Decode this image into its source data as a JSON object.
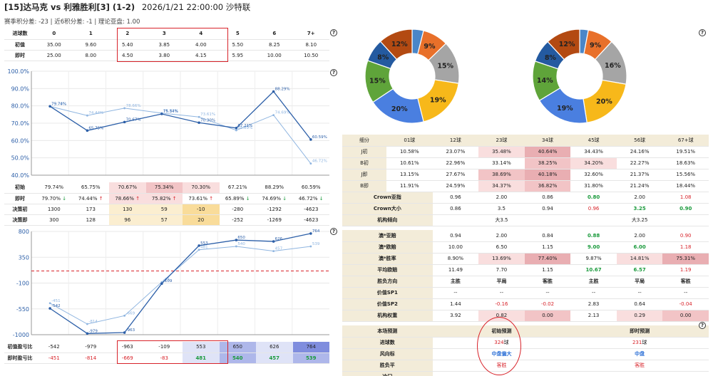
{
  "header": {
    "title_bold": "[15]达马克 vs 利雅胜利[3] (1-2)",
    "time_league": "2026/1/21 22:00:00  沙特联",
    "subtitle": "赛季积分差: -23 | 近6积分差: -1 | 理论亚盘: 1.00",
    "help": "?"
  },
  "goals_table": {
    "header_label": "进球数",
    "columns": [
      "0",
      "1",
      "2",
      "3",
      "4",
      "5",
      "6",
      "7+"
    ],
    "rows": [
      {
        "label": "初值",
        "values": [
          "35.00",
          "9.60",
          "5.40",
          "3.85",
          "4.00",
          "5.50",
          "8.25",
          "8.10"
        ]
      },
      {
        "label": "即时",
        "values": [
          "25.00",
          "8.00",
          "4.50",
          "3.80",
          "4.15",
          "5.95",
          "10.00",
          "10.50"
        ]
      }
    ]
  },
  "chart_data": [
    {
      "type": "line",
      "name": "probability-line-chart",
      "categories": [
        "0",
        "1",
        "2",
        "3",
        "4",
        "5",
        "6",
        "7+"
      ],
      "series": [
        {
          "name": "初始",
          "values": [
            79.74,
            65.75,
            70.67,
            75.34,
            70.3,
            67.21,
            88.29,
            60.59
          ],
          "color": "#2c5fa8"
        },
        {
          "name": "即时",
          "values": [
            79.7,
            74.44,
            78.66,
            75.82,
            73.61,
            65.89,
            74.69,
            46.72
          ],
          "color": "#8fb5e0"
        }
      ],
      "point_labels_a": [
        "79.74%",
        "65.75%",
        "70.67%",
        "75.34%",
        "70.30%",
        "67.21%",
        "88.29%",
        "60.59%"
      ],
      "point_labels_b": [
        "79.70%",
        "74.44%",
        "78.66%",
        "75.82%",
        "73.61%",
        "65.89%",
        "74.69%",
        "46.72%"
      ],
      "yticks": [
        "100.0%",
        "90.0%",
        "80.0%",
        "70.0%",
        "60.0%",
        "50.0%",
        "40.0%"
      ],
      "ylim": [
        40,
        100
      ]
    },
    {
      "type": "line",
      "name": "profit-line-chart",
      "categories": [
        "0",
        "1",
        "2",
        "3",
        "4",
        "5",
        "6",
        "7+"
      ],
      "series": [
        {
          "name": "初值盈亏比",
          "values": [
            -542,
            -979,
            -963,
            -109,
            553,
            650,
            626,
            764
          ],
          "color": "#2c5fa8"
        },
        {
          "name": "即时盈亏比",
          "values": [
            -451,
            -814,
            -669,
            -83,
            481,
            540,
            457,
            539
          ],
          "color": "#8fb5e0"
        }
      ],
      "point_labels_a": [
        "-542",
        "-979",
        "-963",
        "-109",
        "553",
        "650",
        "626",
        "764"
      ],
      "point_labels_b": [
        "-451",
        "-814",
        "-669",
        "-83",
        "481",
        "540",
        "457",
        "539"
      ],
      "reference_line": 0,
      "yticks": [
        "800",
        "350",
        "-100",
        "-550",
        "-1000"
      ],
      "ylim": [
        -1000,
        800
      ]
    },
    {
      "type": "pie",
      "name": "donut-left",
      "values": [
        4,
        9,
        15,
        19,
        20,
        15,
        8,
        12
      ],
      "labels": [
        "",
        "9%",
        "15%",
        "19%",
        "20%",
        "15%",
        "8%",
        "12%"
      ],
      "colors": [
        "#4a86c8",
        "#e8702a",
        "#a5a5a5",
        "#f7b81a",
        "#4a7fe0",
        "#5fa43a",
        "#245aa0",
        "#b34a12"
      ]
    },
    {
      "type": "pie",
      "name": "donut-right",
      "values": [
        3,
        9,
        16,
        20,
        19,
        14,
        8,
        12
      ],
      "labels": [
        "",
        "9%",
        "16%",
        "20%",
        "19%",
        "14%",
        "8%",
        "12%"
      ],
      "colors": [
        "#4a86c8",
        "#e8702a",
        "#a5a5a5",
        "#f7b81a",
        "#4a7fe0",
        "#5fa43a",
        "#245aa0",
        "#b34a12"
      ]
    }
  ],
  "prob_table": {
    "rows": [
      {
        "label": "初始",
        "values": [
          "79.74%",
          "65.75%",
          "70.67%",
          "75.34%",
          "70.30%",
          "67.21%",
          "88.29%",
          "60.59%"
        ],
        "arrows": [
          "",
          "",
          "",
          "",
          "",
          "",
          "",
          ""
        ]
      },
      {
        "label": "即时",
        "values": [
          "79.70%",
          "74.44%",
          "78.66%",
          "75.82%",
          "73.61%",
          "65.89%",
          "74.69%",
          "46.72%"
        ],
        "arrows": [
          "↓",
          "↑",
          "↑",
          "↑",
          "↑",
          "↓",
          "↓",
          "↓"
        ]
      },
      {
        "label": "决策初",
        "values": [
          "1300",
          "173",
          "130",
          "59",
          "-10",
          "-280",
          "-1292",
          "-4623"
        ],
        "arrows": [
          "",
          "",
          "",
          "",
          "",
          "",
          "",
          ""
        ]
      },
      {
        "label": "决策即",
        "values": [
          "300",
          "128",
          "96",
          "57",
          "20",
          "-252",
          "-1269",
          "-4623"
        ],
        "arrows": [
          "",
          "",
          "",
          "",
          "",
          "",
          "",
          ""
        ]
      }
    ]
  },
  "profit_table": {
    "rows": [
      {
        "label": "初值盈亏比",
        "values": [
          "-542",
          "-979",
          "-963",
          "-109",
          "553",
          "650",
          "626",
          "764"
        ]
      },
      {
        "label": "即时盈亏比",
        "values": [
          "-451",
          "-814",
          "-669",
          "-83",
          "481",
          "540",
          "457",
          "539"
        ]
      }
    ]
  },
  "right_table": {
    "header": [
      "细分",
      "01球",
      "12球",
      "23球",
      "34球",
      "45球",
      "56球",
      "67+球"
    ],
    "split_rows": [
      {
        "label": "J初",
        "values": [
          "10.58%",
          "23.07%",
          "35.48%",
          "40.64%",
          "34.43%",
          "24.16%",
          "19.51%"
        ]
      },
      {
        "label": "B初",
        "values": [
          "10.61%",
          "22.96%",
          "33.14%",
          "38.25%",
          "34.20%",
          "22.27%",
          "18.63%"
        ]
      },
      {
        "label": "J即",
        "values": [
          "13.15%",
          "27.67%",
          "38.69%",
          "40.18%",
          "32.60%",
          "21.37%",
          "15.56%"
        ]
      },
      {
        "label": "B即",
        "values": [
          "11.91%",
          "24.59%",
          "34.37%",
          "36.82%",
          "31.80%",
          "21.24%",
          "18.44%"
        ]
      }
    ],
    "crown_rows": [
      {
        "label": "Crown亚指",
        "values": [
          "0.96",
          "2.00",
          "0.86",
          "0.80",
          "2.00",
          "1.08"
        ]
      },
      {
        "label": "Crown大小",
        "values": [
          "0.86",
          "3.5",
          "0.94",
          "0.96",
          "3.25",
          "0.90"
        ]
      },
      {
        "label": "机构倾向",
        "values": [
          "大3.5",
          "大3.25"
        ]
      }
    ],
    "odds_rows": [
      {
        "label": "澳*亚赔",
        "values": [
          "0.94",
          "2.00",
          "0.84",
          "0.88",
          "2.00",
          "0.90"
        ]
      },
      {
        "label": "澳*欧赔",
        "values": [
          "10.00",
          "6.50",
          "1.15",
          "9.00",
          "6.00",
          "1.18"
        ]
      },
      {
        "label": "澳*胜率",
        "values": [
          "8.90%",
          "13.69%",
          "77.40%",
          "9.87%",
          "14.81%",
          "75.31%"
        ]
      },
      {
        "label": "平均欧赔",
        "values": [
          "11.49",
          "7.70",
          "1.15",
          "10.67",
          "6.57",
          "1.19"
        ]
      },
      {
        "label": "胜负方向",
        "values": [
          "主胜",
          "平局",
          "客胜",
          "主胜",
          "平局",
          "客胜"
        ]
      },
      {
        "label": "价值SP1",
        "values": [
          "--",
          "--",
          "--",
          "--",
          "--",
          "--"
        ]
      },
      {
        "label": "价值SP2",
        "values": [
          "1.44",
          "-0.16",
          "-0.02",
          "2.83",
          "0.64",
          "-0.04"
        ]
      },
      {
        "label": "机构权重",
        "values": [
          "3.92",
          "0.82",
          "0.00",
          "2.13",
          "0.29",
          "0.00"
        ]
      }
    ],
    "predict_header": [
      "本场预测",
      "初始预测",
      "即时预测"
    ],
    "predict_rows": [
      {
        "label": "进球数",
        "initial_num": "324",
        "initial_unit": "球",
        "live_num": "231",
        "live_unit": "球"
      },
      {
        "label": "风向标",
        "initial": "中盘偏大",
        "live": "中盘"
      },
      {
        "label": "胜负平",
        "initial": "客胜",
        "live": "客胜"
      },
      {
        "label": "冷门",
        "initial": "--",
        "live": "--"
      }
    ]
  }
}
